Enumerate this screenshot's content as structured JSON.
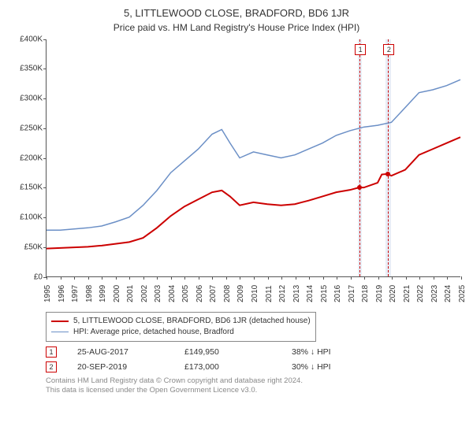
{
  "title": "5, LITTLEWOOD CLOSE, BRADFORD, BD6 1JR",
  "subtitle": "Price paid vs. HM Land Registry's House Price Index (HPI)",
  "chart": {
    "type": "line",
    "background_color": "#ffffff",
    "band_color": "#e8eef7",
    "vline_color": "#cc0000",
    "axis_color": "#555555",
    "label_fontsize": 10,
    "ylim": [
      0,
      400000
    ],
    "ytick_step": 50000,
    "yticks": [
      "£0",
      "£50K",
      "£100K",
      "£150K",
      "£200K",
      "£250K",
      "£300K",
      "£350K",
      "£400K"
    ],
    "xlim": [
      1995,
      2025
    ],
    "xticks": [
      1995,
      1996,
      1997,
      1998,
      1999,
      2000,
      2001,
      2002,
      2003,
      2004,
      2005,
      2006,
      2007,
      2008,
      2009,
      2010,
      2011,
      2012,
      2013,
      2014,
      2015,
      2016,
      2017,
      2018,
      2019,
      2020,
      2021,
      2022,
      2023,
      2024,
      2025
    ],
    "series": [
      {
        "name": "property_price",
        "label": "5, LITTLEWOOD CLOSE, BRADFORD, BD6 1JR (detached house)",
        "color": "#cc0000",
        "line_width": 2,
        "points": [
          [
            1995,
            47000
          ],
          [
            1996,
            48000
          ],
          [
            1997,
            49000
          ],
          [
            1998,
            50000
          ],
          [
            1999,
            52000
          ],
          [
            2000,
            55000
          ],
          [
            2001,
            58000
          ],
          [
            2002,
            65000
          ],
          [
            2003,
            82000
          ],
          [
            2004,
            102000
          ],
          [
            2005,
            118000
          ],
          [
            2006,
            130000
          ],
          [
            2007,
            142000
          ],
          [
            2007.7,
            145000
          ],
          [
            2008.3,
            135000
          ],
          [
            2009,
            120000
          ],
          [
            2010,
            125000
          ],
          [
            2011,
            122000
          ],
          [
            2012,
            120000
          ],
          [
            2013,
            122000
          ],
          [
            2014,
            128000
          ],
          [
            2015,
            135000
          ],
          [
            2016,
            142000
          ],
          [
            2017,
            146000
          ],
          [
            2017.65,
            149950
          ],
          [
            2018,
            150000
          ],
          [
            2019,
            158000
          ],
          [
            2019.3,
            172000
          ],
          [
            2019.72,
            173000
          ],
          [
            2020,
            170000
          ],
          [
            2021,
            180000
          ],
          [
            2022,
            205000
          ],
          [
            2023,
            215000
          ],
          [
            2024,
            225000
          ],
          [
            2025,
            235000
          ]
        ]
      },
      {
        "name": "hpi",
        "label": "HPI: Average price, detached house, Bradford",
        "color": "#6b8fc6",
        "line_width": 1.5,
        "points": [
          [
            1995,
            78000
          ],
          [
            1996,
            78000
          ],
          [
            1997,
            80000
          ],
          [
            1998,
            82000
          ],
          [
            1999,
            85000
          ],
          [
            2000,
            92000
          ],
          [
            2001,
            100000
          ],
          [
            2002,
            120000
          ],
          [
            2003,
            145000
          ],
          [
            2004,
            175000
          ],
          [
            2005,
            195000
          ],
          [
            2006,
            215000
          ],
          [
            2007,
            240000
          ],
          [
            2007.7,
            248000
          ],
          [
            2008.3,
            225000
          ],
          [
            2009,
            200000
          ],
          [
            2010,
            210000
          ],
          [
            2011,
            205000
          ],
          [
            2012,
            200000
          ],
          [
            2013,
            205000
          ],
          [
            2014,
            215000
          ],
          [
            2015,
            225000
          ],
          [
            2016,
            238000
          ],
          [
            2017,
            246000
          ],
          [
            2018,
            252000
          ],
          [
            2019,
            255000
          ],
          [
            2020,
            260000
          ],
          [
            2021,
            285000
          ],
          [
            2022,
            310000
          ],
          [
            2023,
            315000
          ],
          [
            2024,
            322000
          ],
          [
            2025,
            332000
          ]
        ]
      }
    ],
    "sale_markers": [
      {
        "num": "1",
        "x": 2017.65,
        "y": 149950,
        "band": [
          2017.5,
          2017.8
        ]
      },
      {
        "num": "2",
        "x": 2019.72,
        "y": 173000,
        "band": [
          2019.55,
          2019.9
        ]
      }
    ],
    "marker_dot_color": "#cc0000"
  },
  "legend": {
    "items": [
      {
        "color": "#cc0000",
        "width": 2,
        "key": "chart.series.0.label"
      },
      {
        "color": "#6b8fc6",
        "width": 1.5,
        "key": "chart.series.1.label"
      }
    ]
  },
  "sales_table": {
    "rows": [
      {
        "num": "1",
        "date": "25-AUG-2017",
        "price": "£149,950",
        "delta": "38% ↓ HPI"
      },
      {
        "num": "2",
        "date": "20-SEP-2019",
        "price": "£173,000",
        "delta": "30% ↓ HPI"
      }
    ]
  },
  "footer": {
    "line1": "Contains HM Land Registry data © Crown copyright and database right 2024.",
    "line2": "This data is licensed under the Open Government Licence v3.0."
  }
}
